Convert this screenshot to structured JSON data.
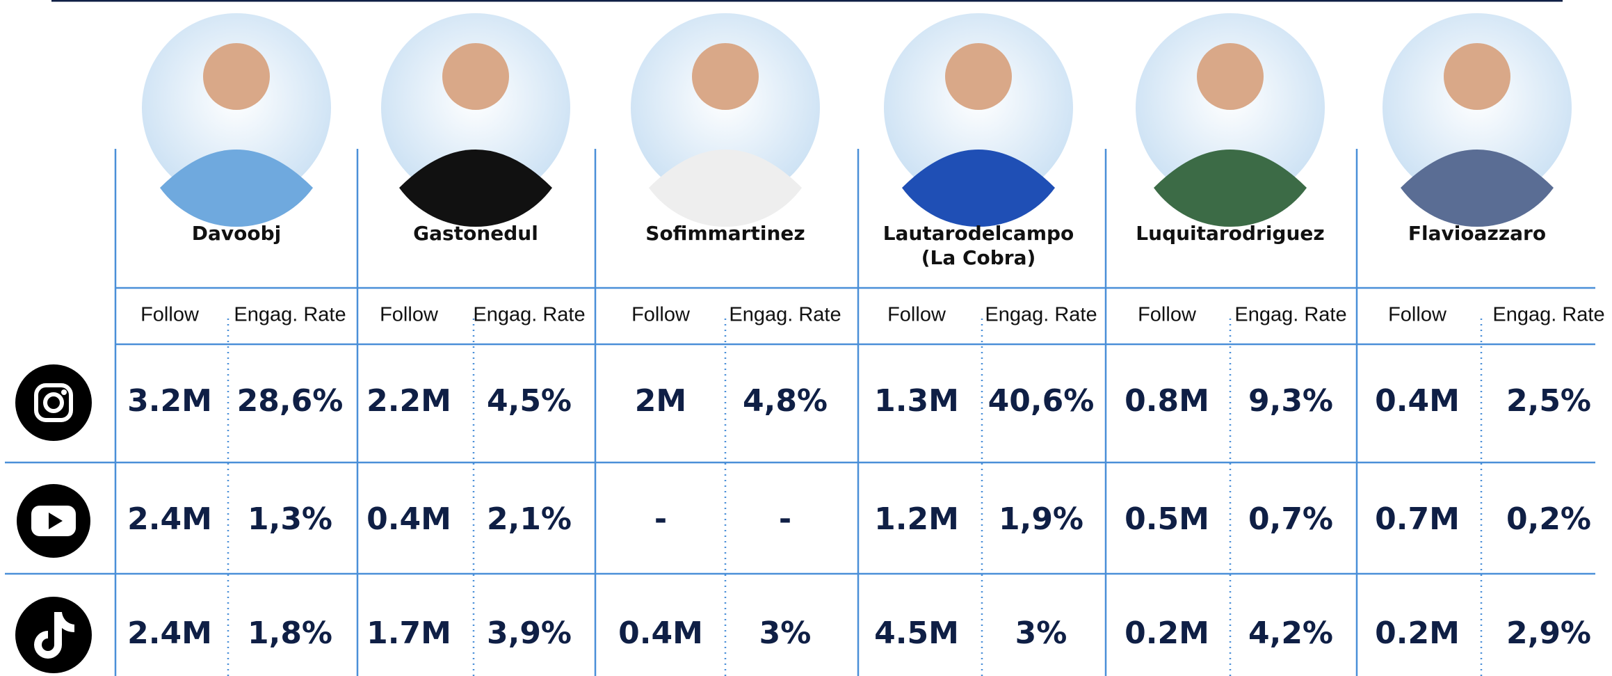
{
  "people": [
    {
      "name": [
        "Davoobj"
      ]
    },
    {
      "name": [
        "Gastonedul"
      ]
    },
    {
      "name": [
        "Sofimmartinez"
      ]
    },
    {
      "name": [
        "Lautarodelcampo",
        "(La Cobra)"
      ]
    },
    {
      "name": [
        "Luquitarodriguez"
      ]
    },
    {
      "name": [
        "Flavioazzaro"
      ]
    }
  ],
  "column_headers": [
    "Follow",
    "Engag. Rate"
  ],
  "rows": [
    [
      [
        "3.2M",
        "28,6%"
      ],
      [
        "2.2M",
        "4,5%"
      ],
      [
        "2M",
        "4,8%"
      ],
      [
        "1.3M",
        "40,6%"
      ],
      [
        "0.8M",
        "9,3%"
      ],
      [
        "0.4M",
        "2,5%"
      ]
    ],
    [
      [
        "2.4M",
        "1,3%"
      ],
      [
        "0.4M",
        "2,1%"
      ],
      [
        "-",
        "-"
      ],
      [
        "1.2M",
        "1,9%"
      ],
      [
        "0.5M",
        "0,7%"
      ],
      [
        "0.7M",
        "0,2%"
      ]
    ],
    [
      [
        "2.4M",
        "1,8%"
      ],
      [
        "1.7M",
        "3,9%"
      ],
      [
        "0.4M",
        "3%"
      ],
      [
        "4.5M",
        "3%"
      ],
      [
        "0.2M",
        "4,2%"
      ],
      [
        "0.2M",
        "2,9%"
      ]
    ]
  ]
}
